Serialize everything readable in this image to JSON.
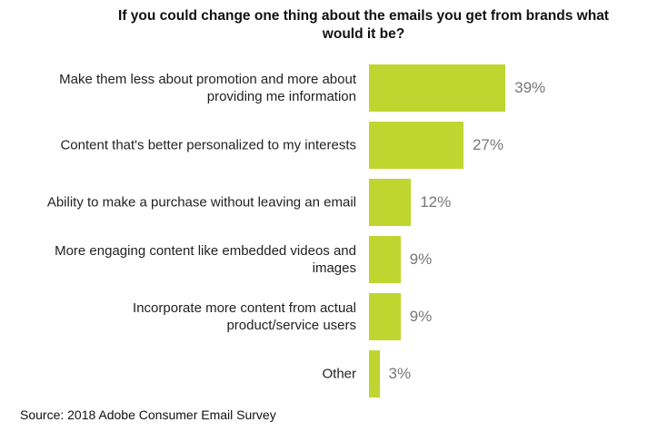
{
  "chart_data": {
    "type": "bar",
    "orientation": "horizontal",
    "title": "If you could change one thing about the emails you get from brands what would it be?",
    "categories": [
      "Make them less about promotion and more about providing me information",
      "Content that's better personalized to my interests",
      "Ability to make a purchase without leaving an email",
      "More engaging content like embedded videos and images",
      "Incorporate more content from actual product/service users",
      "Other"
    ],
    "values": [
      39,
      27,
      12,
      9,
      9,
      3
    ],
    "value_labels": [
      "39%",
      "27%",
      "12%",
      "9%",
      "9%",
      "3%"
    ],
    "color": "#bfd630",
    "source": "Source: 2018 Adobe Consumer Email Survey"
  }
}
